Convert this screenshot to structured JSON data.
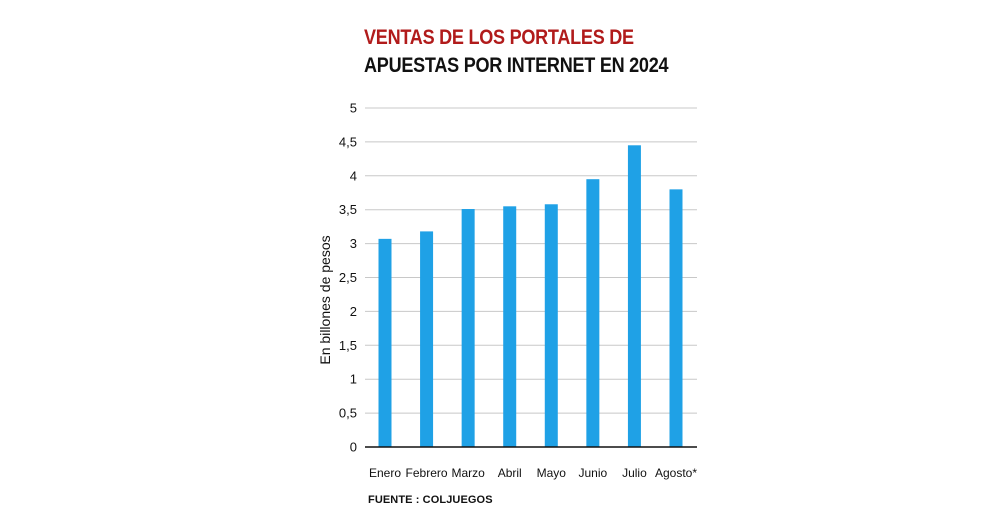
{
  "title": {
    "line1": "VENTAS DE LOS PORTALES DE",
    "line2": "APUESTAS POR INTERNET EN 2024"
  },
  "source": "FUENTE : COLJUEGOS",
  "colors": {
    "bar": "#1fa1e6",
    "title_accent": "#b11b1b",
    "grid": "#c8c8c8",
    "axis": "#111111"
  },
  "chart_data": {
    "type": "bar",
    "title": "VENTAS DE LOS PORTALES DE APUESTAS POR INTERNET EN 2024",
    "xlabel": "",
    "ylabel": "En billones de pesos",
    "categories": [
      "Enero",
      "Febrero",
      "Marzo",
      "Abril",
      "Mayo",
      "Junio",
      "Julio",
      "Agosto*"
    ],
    "values": [
      3.07,
      3.18,
      3.51,
      3.55,
      3.58,
      3.95,
      4.45,
      3.8
    ],
    "ylim": [
      0,
      5
    ],
    "yticks": [
      0,
      0.5,
      1,
      1.5,
      2,
      2.5,
      3,
      3.5,
      4,
      4.5,
      5
    ],
    "ytick_labels": [
      "0",
      "0,5",
      "1",
      "1,5",
      "2",
      "2,5",
      "3",
      "3,5",
      "4",
      "4,5",
      "5"
    ],
    "grid": true,
    "legend": "none"
  }
}
